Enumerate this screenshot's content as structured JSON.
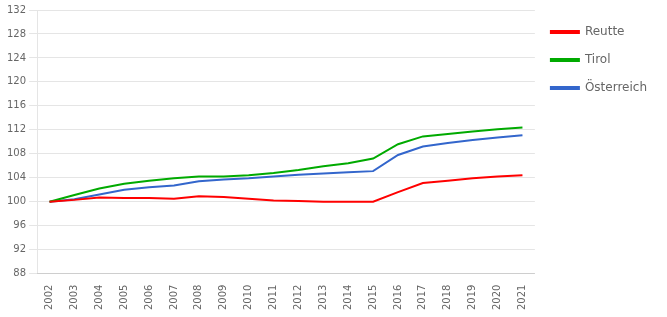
{
  "chart_data": {
    "type": "line",
    "x": [
      2002,
      2003,
      2004,
      2005,
      2006,
      2007,
      2008,
      2009,
      2010,
      2011,
      2012,
      2013,
      2014,
      2015,
      2016,
      2017,
      2018,
      2019,
      2020,
      2021
    ],
    "series": [
      {
        "name": "Reutte",
        "color": "#ff0000",
        "values": [
          100.0,
          100.3,
          100.7,
          100.6,
          100.6,
          100.5,
          100.9,
          100.8,
          100.5,
          100.2,
          100.1,
          100.0,
          100.0,
          100.0,
          101.6,
          103.1,
          103.5,
          103.9,
          104.2,
          104.4
        ]
      },
      {
        "name": "Tirol",
        "color": "#00aa00",
        "values": [
          100.0,
          101.1,
          102.2,
          103.0,
          103.5,
          103.9,
          104.2,
          104.2,
          104.4,
          104.8,
          105.3,
          105.9,
          106.4,
          107.2,
          109.6,
          110.9,
          111.3,
          111.7,
          112.1,
          112.4
        ]
      },
      {
        "name": "Österreich",
        "color": "#3366cc",
        "values": [
          100.0,
          100.4,
          101.2,
          102.0,
          102.4,
          102.7,
          103.4,
          103.7,
          103.9,
          104.2,
          104.5,
          104.7,
          104.9,
          105.1,
          107.8,
          109.2,
          109.8,
          110.3,
          110.7,
          111.1
        ]
      }
    ],
    "xlim": [
      2001.5,
      2021.5
    ],
    "xticks": [
      2002,
      2003,
      2004,
      2005,
      2006,
      2007,
      2008,
      2009,
      2010,
      2011,
      2012,
      2013,
      2014,
      2015,
      2016,
      2017,
      2018,
      2019,
      2020,
      2021
    ],
    "ylim": [
      88,
      132
    ],
    "yticks": [
      88,
      92,
      96,
      100,
      104,
      108,
      112,
      116,
      120,
      124,
      128,
      132
    ],
    "grid": "y",
    "legend": "right"
  }
}
